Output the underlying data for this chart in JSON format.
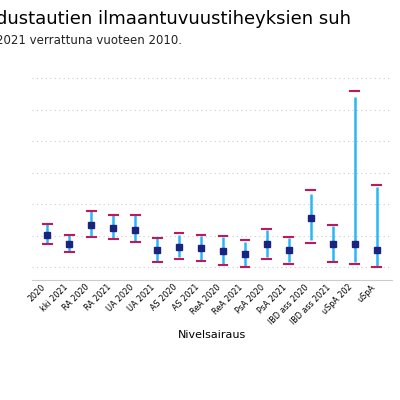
{
  "title": "dustautien ilmaantuvuustiheyksien suh",
  "subtitle": "2021 verrattuna vuoteen 2010.",
  "xlabel": "Nivelsairaus",
  "background_color": "#ffffff",
  "categories": [
    "2020",
    "kki 2021",
    "RA 2020",
    "RA 2021",
    "UA 2020",
    "UA 2021",
    "AS 2020",
    "AS 2021",
    "ReA 2020",
    "ReA 2021",
    "PsA 2020",
    "PsA 2021",
    "IBD ass 2020",
    "IBD ass 2021",
    "uSpA 202",
    "uSpA"
  ],
  "irr": [
    1.02,
    0.87,
    1.18,
    1.13,
    1.1,
    0.77,
    0.83,
    0.8,
    0.76,
    0.72,
    0.87,
    0.77,
    1.28,
    0.87,
    0.87,
    0.78
  ],
  "ci_low_blue": [
    0.87,
    0.75,
    0.99,
    0.95,
    0.9,
    0.58,
    0.66,
    0.62,
    0.56,
    0.53,
    0.66,
    0.58,
    0.93,
    0.6,
    0.58,
    0.52
  ],
  "ci_high_blue": [
    1.19,
    1.01,
    1.39,
    1.33,
    1.33,
    0.97,
    1.02,
    1.0,
    0.98,
    0.91,
    1.09,
    0.97,
    1.67,
    1.16,
    3.2,
    1.78
  ],
  "ci_low_pink": [
    0.87,
    0.75,
    0.99,
    0.95,
    0.9,
    0.58,
    0.63,
    0.6,
    0.54,
    0.51,
    0.64,
    0.56,
    0.88,
    0.58,
    0.56,
    0.5
  ],
  "ci_high_pink": [
    1.19,
    1.01,
    1.39,
    1.33,
    1.33,
    0.97,
    1.04,
    1.02,
    1.0,
    0.93,
    1.11,
    0.99,
    1.72,
    1.18,
    3.3,
    1.8
  ],
  "ylim": [
    0.3,
    3.6
  ],
  "irr_color": "#1a237e",
  "ci_blue_color": "#29b6f6",
  "ci_pink_color": "#c2185b",
  "title_fontsize": 13,
  "subtitle_fontsize": 8.5,
  "axis_fontsize": 8,
  "yticks": [
    0.5,
    1.0,
    1.5,
    2.0,
    2.5,
    3.0,
    3.5
  ],
  "grid_color": "#cccccc"
}
